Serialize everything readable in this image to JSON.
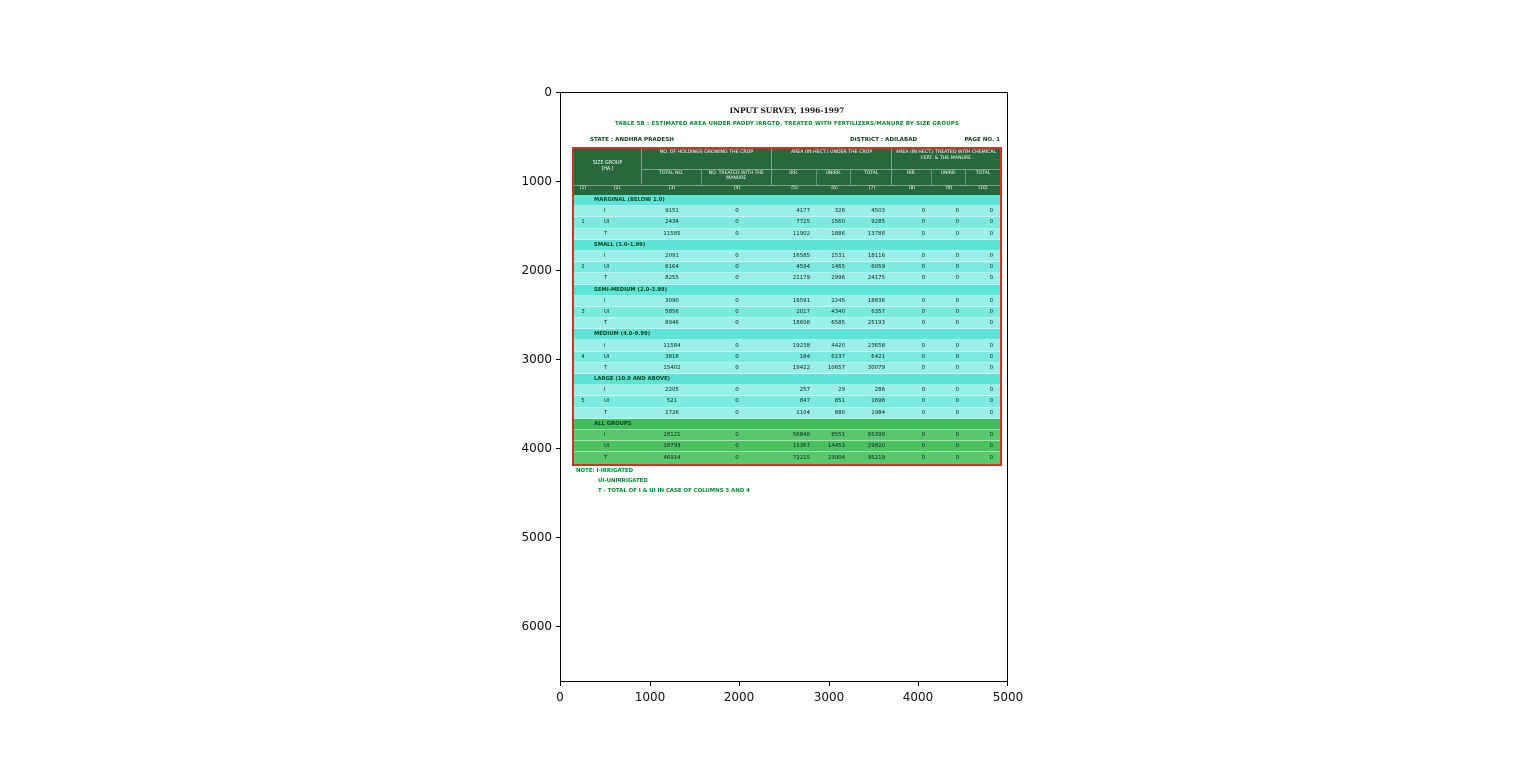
{
  "figure": {
    "x_ticks": [
      "0",
      "1000",
      "2000",
      "3000",
      "4000",
      "5000"
    ],
    "y_ticks": [
      "0",
      "1000",
      "2000",
      "3000",
      "4000",
      "5000",
      "6000"
    ]
  },
  "document": {
    "title": "INPUT SURVEY, 1996-1997",
    "subtitle": "TABLE 5B : ESTIMATED AREA UNDER PADDY IRRGTD. TREATED WITH FERTILIZERS/MANURE BY SIZE GROUPS",
    "state": "STATE : ANDHRA PRADESH",
    "district": "DISTRICT : ADILABAD",
    "page": "PAGE NO. 1",
    "notes": [
      "NOTE: I-IRRIGATED",
      "UI-UNIRRIGATED",
      "T - TOTAL OF I & UI IN CASE OF COLUMNS 3 AND 4"
    ]
  },
  "chart_data": {
    "type": "table",
    "title": "INPUT SURVEY, 1996-1997",
    "axes": {
      "x_range": [
        0,
        5000
      ],
      "y_range": [
        0,
        6000
      ]
    },
    "header": {
      "size_group": "SIZE GROUP (HA.)",
      "holdings": "NO. OF HOLDINGS GROWING THE CROP",
      "holdings_sub": [
        "TOTAL NO.",
        "NO. TREATED WITH THE MANURE"
      ],
      "area_crop": "AREA (IN HECT.) UNDER THE CROP",
      "area_crop_sub": [
        "IRR.",
        "UNIRR.",
        "TOTAL"
      ],
      "area_treated": "AREA (IN HECT.) TREATED WITH CHEMICAL FERT. & THE MANURE",
      "area_treated_sub": [
        "IRR.",
        "UNIRR.",
        "TOTAL"
      ],
      "col_numbers": [
        "(1)",
        "(2)",
        "(3)",
        "(4)",
        "(5)",
        "(6)",
        "(7)",
        "(8)",
        "(9)",
        "(10)"
      ]
    },
    "groups": [
      {
        "serial": "1",
        "label": "MARGINAL (BELOW 1.0)",
        "highlight": false,
        "rows": [
          {
            "label": "I",
            "values": [
              9151,
              0,
              4177,
              326,
              4503,
              0,
              0,
              0
            ]
          },
          {
            "label": "UI",
            "values": [
              2434,
              0,
              7725,
              1560,
              9285,
              0,
              0,
              0
            ]
          },
          {
            "label": "T",
            "values": [
              11585,
              0,
              11902,
              1886,
              13788,
              0,
              0,
              0
            ]
          }
        ]
      },
      {
        "serial": "2",
        "label": "SMALL (1.0-1.99)",
        "highlight": false,
        "rows": [
          {
            "label": "I",
            "values": [
              2091,
              0,
              16585,
              1531,
              18116,
              0,
              0,
              0
            ]
          },
          {
            "label": "UI",
            "values": [
              6164,
              0,
              4594,
              1465,
              6059,
              0,
              0,
              0
            ]
          },
          {
            "label": "T",
            "values": [
              8255,
              0,
              21179,
              2996,
              24175,
              0,
              0,
              0
            ]
          }
        ]
      },
      {
        "serial": "3",
        "label": "SEMI-MEDIUM (2.0-3.99)",
        "highlight": false,
        "rows": [
          {
            "label": "I",
            "values": [
              3090,
              0,
              16591,
              2245,
              18836,
              0,
              0,
              0
            ]
          },
          {
            "label": "UI",
            "values": [
              5856,
              0,
              2017,
              4340,
              6357,
              0,
              0,
              0
            ]
          },
          {
            "label": "T",
            "values": [
              8946,
              0,
              18608,
              6585,
              25193,
              0,
              0,
              0
            ]
          }
        ]
      },
      {
        "serial": "4",
        "label": "MEDIUM (4.0-9.99)",
        "highlight": false,
        "rows": [
          {
            "label": "I",
            "values": [
              11584,
              0,
              19238,
              4420,
              23658,
              0,
              0,
              0
            ]
          },
          {
            "label": "UI",
            "values": [
              3818,
              0,
              184,
              6237,
              6421,
              0,
              0,
              0
            ]
          },
          {
            "label": "T",
            "values": [
              15402,
              0,
              19422,
              10657,
              30079,
              0,
              0,
              0
            ]
          }
        ]
      },
      {
        "serial": "5",
        "label": "LARGE (10.0 AND ABOVE)",
        "highlight": false,
        "rows": [
          {
            "label": "I",
            "values": [
              2205,
              0,
              257,
              29,
              286,
              0,
              0,
              0
            ]
          },
          {
            "label": "UI",
            "values": [
              521,
              0,
              847,
              851,
              1698,
              0,
              0,
              0
            ]
          },
          {
            "label": "T",
            "values": [
              2726,
              0,
              1104,
              880,
              1984,
              0,
              0,
              0
            ]
          }
        ]
      },
      {
        "serial": "",
        "label": "ALL GROUPS",
        "highlight": true,
        "rows": [
          {
            "label": "I",
            "values": [
              28121,
              0,
              56848,
              8551,
              65399,
              0,
              0,
              0
            ]
          },
          {
            "label": "UI",
            "values": [
              18793,
              0,
              15367,
              14453,
              29820,
              0,
              0,
              0
            ]
          },
          {
            "label": "T",
            "values": [
              46914,
              0,
              72215,
              23004,
              95219,
              0,
              0,
              0
            ]
          }
        ]
      }
    ]
  }
}
